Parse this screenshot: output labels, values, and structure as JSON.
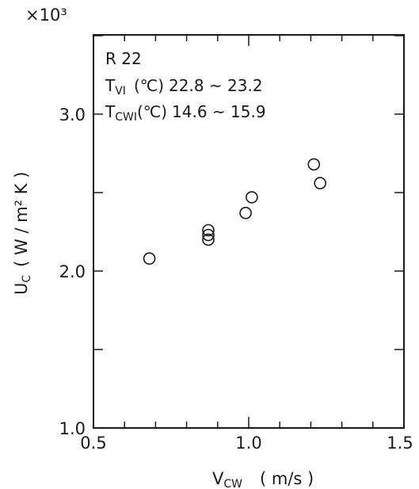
{
  "chart_data": {
    "type": "scatter",
    "title": "",
    "xlabel": {
      "main": "V",
      "sub": "CW",
      "unit": "( m/s )"
    },
    "ylabel": {
      "main": "U",
      "sub": "C",
      "unit": "( W / m² K )"
    },
    "y_multiplier": "×10³",
    "xlim": [
      0.5,
      1.5
    ],
    "ylim": [
      1.0,
      3.5
    ],
    "x_ticks": [
      "0.5",
      "1.0",
      "1.5"
    ],
    "y_ticks": [
      "1.0",
      "2.0",
      "3.0"
    ],
    "grid": false,
    "annotations": {
      "refrigerant": "R 22",
      "tvi": {
        "symbol": "T",
        "sub": "VI",
        "unit": "(℃)",
        "range": "22.8 ~ 23.2"
      },
      "tcwi": {
        "symbol": "T",
        "sub": "CWI",
        "unit": "(℃)",
        "range": "14.6 ~ 15.9"
      }
    },
    "series": [
      {
        "marker": "open-circle",
        "x": [
          0.68,
          0.87,
          0.87,
          0.87,
          0.99,
          1.01,
          1.21,
          1.23
        ],
        "y": [
          2.08,
          2.26,
          2.23,
          2.2,
          2.37,
          2.47,
          2.68,
          2.56
        ]
      }
    ]
  }
}
